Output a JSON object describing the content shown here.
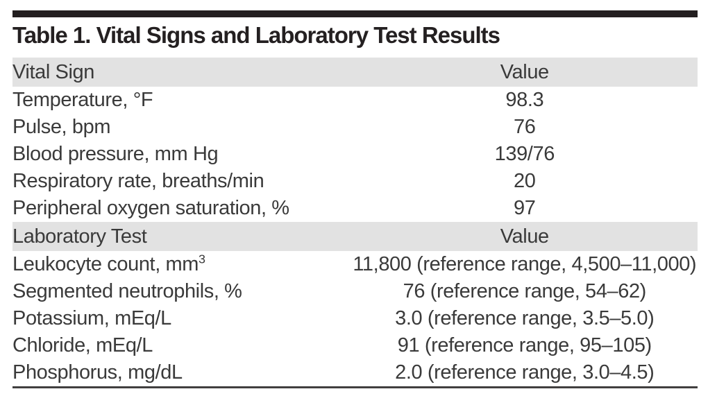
{
  "table": {
    "title": "Table 1. Vital Signs and Laboratory Test Results",
    "sections": [
      {
        "header": {
          "label": "Vital Sign",
          "value": "Value"
        },
        "rows": [
          {
            "label": "Temperature, °F",
            "value": "98.3"
          },
          {
            "label": "Pulse, bpm",
            "value": "76"
          },
          {
            "label": "Blood pressure, mm Hg",
            "value": "139/76"
          },
          {
            "label": "Respiratory rate, breaths/min",
            "value": "20"
          },
          {
            "label": "Peripheral oxygen saturation, %",
            "value": "97"
          }
        ]
      },
      {
        "header": {
          "label": "Laboratory Test",
          "value": "Value"
        },
        "rows": [
          {
            "label": "Leukocyte count, mm",
            "sup": "3",
            "value": "11,800 (reference range, 4,500–11,000)"
          },
          {
            "label": "Segmented neutrophils, %",
            "value": "76 (reference range, 54–62)"
          },
          {
            "label": "Potassium, mEq/L",
            "value": "3.0 (reference range, 3.5–5.0)"
          },
          {
            "label": "Chloride, mEq/L",
            "value": "91 (reference range, 95–105)"
          },
          {
            "label": "Phosphorus, mg/dL",
            "value": "2.0 (reference range, 3.0–4.5)"
          }
        ]
      }
    ]
  },
  "colors": {
    "top_bar": "#231f20",
    "section_band": "#e2e2e2",
    "title_text": "#242021",
    "body_text": "#3a3a3a",
    "bottom_rule": "#413f3f"
  }
}
